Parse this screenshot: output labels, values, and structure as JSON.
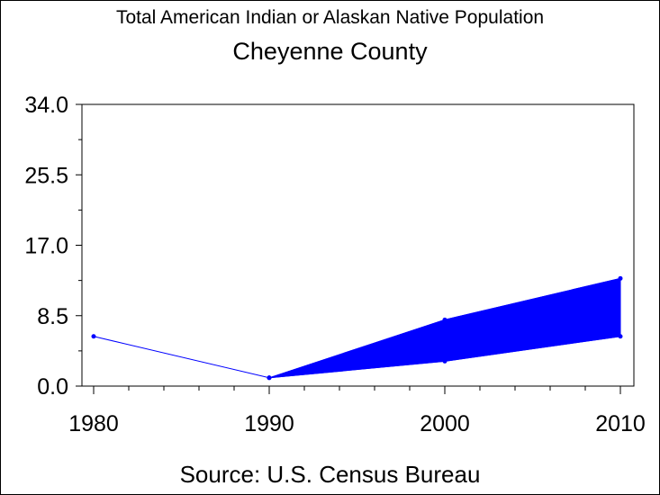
{
  "chart_data": {
    "type": "line",
    "title": "Total American Indian or Alaskan Native Population",
    "subtitle": "Cheyenne County",
    "source": "Source: U.S. Census Bureau",
    "x": [
      1980,
      1990,
      2000,
      2010
    ],
    "x_tick_labels": [
      "1980",
      "1990",
      "2000",
      "2010"
    ],
    "y_tick_values": [
      0.0,
      8.5,
      17.0,
      25.5,
      34.0
    ],
    "y_tick_labels": [
      "0.0",
      "8.5",
      "17.0",
      "25.5",
      "34.0"
    ],
    "ylim": [
      0,
      34
    ],
    "xlim": [
      1980,
      2010
    ],
    "series": [
      {
        "values": [
          6,
          1,
          null,
          null
        ]
      },
      {
        "values": [
          null,
          1,
          3,
          6
        ]
      },
      {
        "values": [
          null,
          1,
          8,
          13
        ]
      }
    ],
    "band": {
      "x": [
        1990,
        2000,
        2010
      ],
      "low": [
        1,
        3,
        6
      ],
      "high": [
        1,
        8,
        13
      ]
    },
    "colors": {
      "series": "#0000ff",
      "axes": "#000000"
    },
    "grid": false,
    "legend": "none"
  }
}
